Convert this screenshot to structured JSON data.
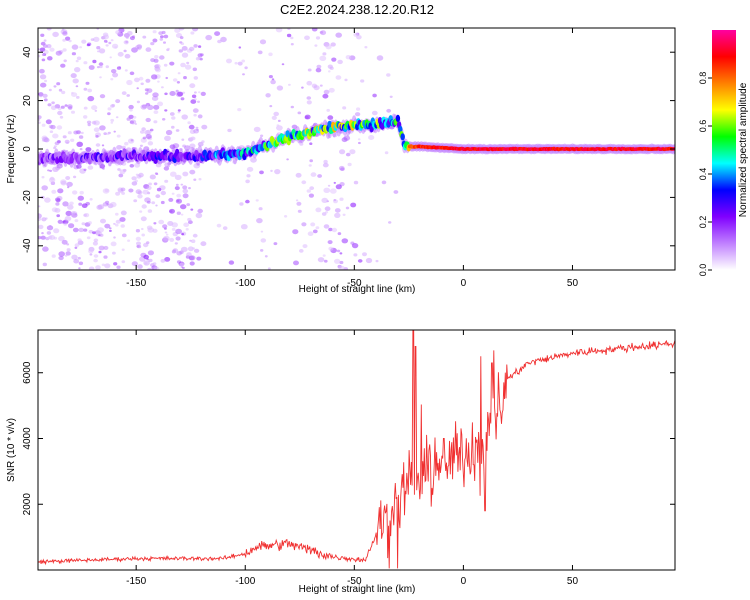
{
  "title": "C2E2.2024.238.12.20.R12",
  "chart_data": [
    {
      "type": "heatmap",
      "xlabel": "Height of straight line (km)",
      "ylabel": "Frequency (Hz)",
      "xlim": [
        -195,
        97
      ],
      "ylim": [
        -50,
        50
      ],
      "x_ticks": [
        -150,
        -100,
        -50,
        0,
        50
      ],
      "y_ticks": [
        -40,
        -20,
        0,
        20,
        40
      ],
      "colorbar": {
        "label": "Normalized spectral amplitude",
        "range": [
          0,
          1
        ],
        "ticks": [
          "0.0",
          "0.2",
          "0.4",
          "0.6",
          "0.8"
        ],
        "colors": [
          "#ffffff",
          "#c080ff",
          "#8000ff",
          "#0000ff",
          "#00ffff",
          "#00ff00",
          "#ffff00",
          "#ff8000",
          "#ff0000",
          "#ff00a0"
        ]
      },
      "ridge": {
        "x": [
          -195,
          -160,
          -120,
          -100,
          -80,
          -60,
          -40,
          -30,
          -27,
          -20,
          0,
          50,
          97
        ],
        "frequency": [
          -4,
          -3,
          -3,
          -2,
          5,
          9,
          10,
          12,
          1,
          1,
          0,
          0,
          0
        ],
        "amplitude": [
          0.2,
          0.25,
          0.3,
          0.45,
          0.55,
          0.6,
          0.55,
          0.5,
          0.8,
          0.9,
          0.95,
          0.95,
          0.95
        ]
      },
      "grid": false
    },
    {
      "type": "line",
      "xlabel": "Height of straight line (km)",
      "ylabel": "SNR (10 * v/v)",
      "xlim": [
        -195,
        97
      ],
      "ylim": [
        0,
        7300
      ],
      "x_ticks": [
        -150,
        -100,
        -50,
        0,
        50
      ],
      "y_ticks": [
        2000,
        4000,
        6000
      ],
      "color": "#f03030",
      "trend": {
        "x": [
          -195,
          -150,
          -110,
          -100,
          -95,
          -80,
          -60,
          -45,
          -38,
          -30,
          -25,
          -20,
          -15,
          -10,
          -5,
          0,
          5,
          10,
          15,
          20,
          30,
          50,
          97
        ],
        "y": [
          250,
          350,
          350,
          500,
          700,
          800,
          400,
          300,
          1400,
          2000,
          2800,
          2800,
          3000,
          3200,
          3400,
          3600,
          3700,
          4000,
          4800,
          5800,
          6300,
          6600,
          6900
        ]
      },
      "spikes": [
        {
          "x": -23,
          "y": 7300
        },
        {
          "x": -22,
          "y": 6800
        },
        {
          "x": 8,
          "y": 6500
        },
        {
          "x": 13,
          "y": 6300
        },
        {
          "x": 10,
          "y": 1800
        }
      ],
      "grid": false
    }
  ]
}
